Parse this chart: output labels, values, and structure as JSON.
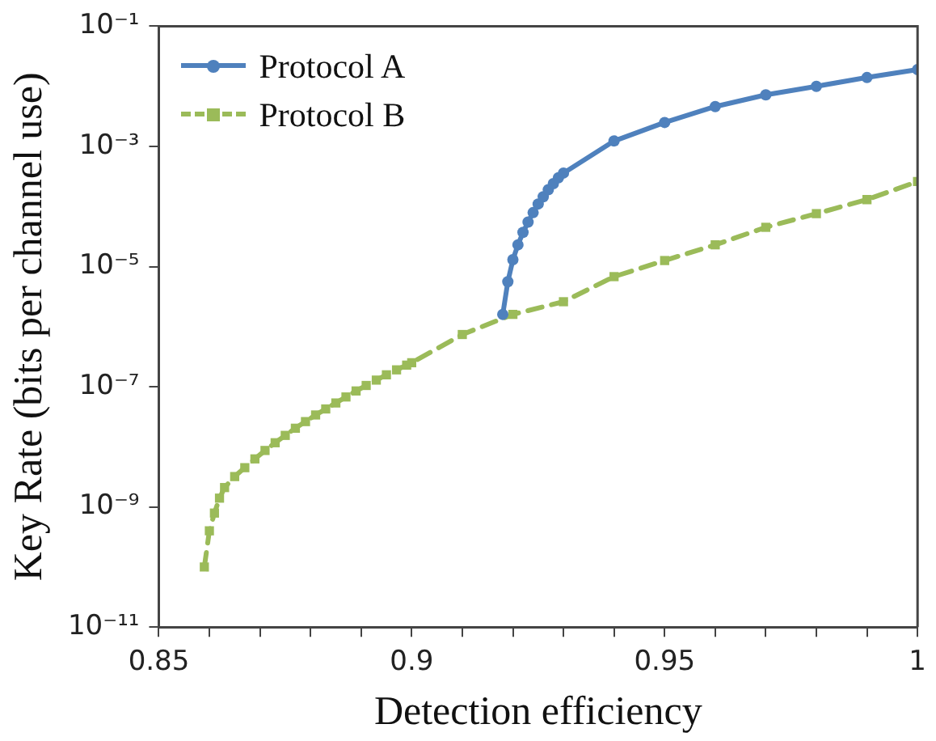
{
  "chart_data": {
    "type": "line",
    "xlabel": "Detection efficiency",
    "ylabel": "Key Rate (bits per channel use)",
    "log": "y",
    "grid": false,
    "legend": "top left",
    "xlim": [
      0.85,
      1.0
    ],
    "xticks": [
      0.85,
      {
        "value": 0.86,
        "label": null
      },
      {
        "value": 0.87,
        "label": null
      },
      {
        "value": 0.88,
        "label": null
      },
      {
        "value": 0.89,
        "label": null
      },
      0.9,
      {
        "value": 0.91,
        "label": null
      },
      {
        "value": 0.92,
        "label": null
      },
      {
        "value": 0.93,
        "label": null
      },
      {
        "value": 0.94,
        "label": null
      },
      0.95,
      {
        "value": 0.96,
        "label": null
      },
      {
        "value": 0.97,
        "label": null
      },
      {
        "value": 0.98,
        "label": null
      },
      {
        "value": 0.99,
        "label": null
      },
      1
    ],
    "ylim": [
      1e-11,
      0.1
    ],
    "yticks": [
      {
        "value": 1e-11,
        "label": "10⁻¹¹"
      },
      {
        "value": 1e-09,
        "label": "10⁻⁹"
      },
      {
        "value": 1e-07,
        "label": "10⁻⁷"
      },
      {
        "value": 1e-05,
        "label": "10⁻⁵"
      },
      {
        "value": 0.001,
        "label": "10⁻³"
      },
      {
        "value": 0.1,
        "label": "10⁻¹"
      }
    ],
    "series": [
      {
        "name": "Protocol A",
        "color": "#4f81bd",
        "marker": "circle",
        "line_style": "solid",
        "x": [
          0.918,
          0.919,
          0.92,
          0.921,
          0.922,
          0.923,
          0.924,
          0.925,
          0.926,
          0.927,
          0.928,
          0.929,
          0.93,
          0.94,
          0.95,
          0.96,
          0.97,
          0.98,
          0.99,
          1.0
        ],
        "values": [
          1.6e-06,
          5.6e-06,
          1.3e-05,
          2.3e-05,
          3.7e-05,
          5.5e-05,
          7.9e-05,
          0.00011,
          0.000145,
          0.00019,
          0.00024,
          0.0003,
          0.00036,
          0.00123,
          0.0025,
          0.0046,
          0.0072,
          0.01,
          0.014,
          0.019
        ]
      },
      {
        "name": "Protocol B",
        "color": "#9bbb59",
        "marker": "square",
        "line_style": "dashed",
        "x": [
          0.859,
          0.86,
          0.861,
          0.862,
          0.863,
          0.865,
          0.867,
          0.869,
          0.871,
          0.873,
          0.875,
          0.877,
          0.879,
          0.881,
          0.883,
          0.885,
          0.887,
          0.889,
          0.891,
          0.893,
          0.895,
          0.897,
          0.899,
          0.9,
          0.91,
          0.92,
          0.93,
          0.94,
          0.95,
          0.96,
          0.97,
          0.98,
          0.99,
          1.0
        ],
        "values": [
          1e-10,
          4e-10,
          7.9e-10,
          1.4e-09,
          2.1e-09,
          3.2e-09,
          4.5e-09,
          6.3e-09,
          8.7e-09,
          1.17e-08,
          1.55e-08,
          2.04e-08,
          2.63e-08,
          3.39e-08,
          4.27e-08,
          5.37e-08,
          6.76e-08,
          8.51e-08,
          1.05e-07,
          1.29e-07,
          1.58e-07,
          1.91e-07,
          2.29e-07,
          2.51e-07,
          7.4e-07,
          1.6e-06,
          2.6e-06,
          6.8e-06,
          1.26e-05,
          2.3e-05,
          4.5e-05,
          7.6e-05,
          0.00013,
          0.00026
        ]
      }
    ]
  }
}
